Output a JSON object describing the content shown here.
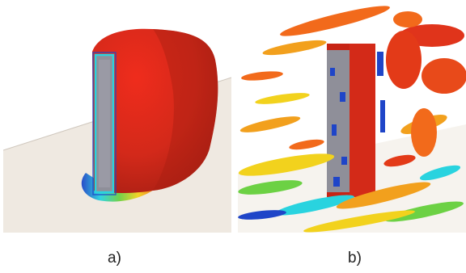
{
  "figure": {
    "panels": [
      {
        "id": "a",
        "caption": "a)"
      },
      {
        "id": "b",
        "caption": "b)"
      }
    ]
  },
  "colors": {
    "background": "#ffffff",
    "ground_plane": "#efe9e1",
    "building": "#8f8f99",
    "red": "#d42a14",
    "orange": "#f26a1b",
    "yellow": "#f2d21d",
    "green": "#6cd144",
    "cyan": "#29d3df",
    "blue": "#1f45c8"
  }
}
